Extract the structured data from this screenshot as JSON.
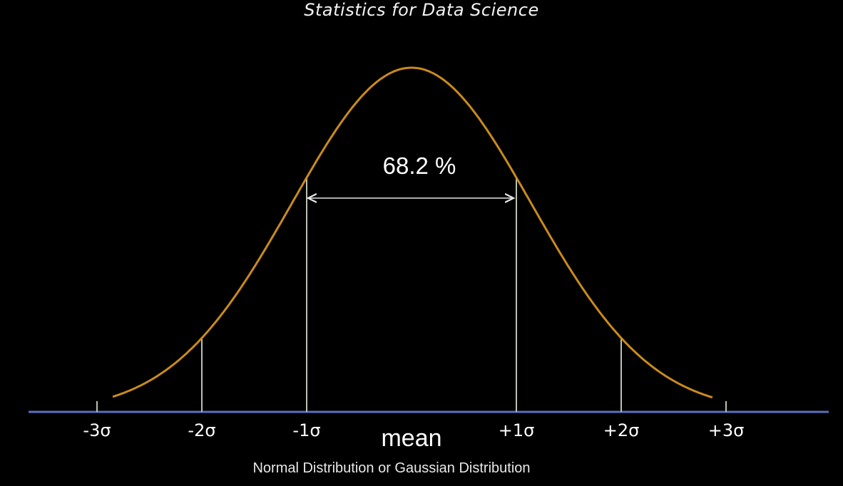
{
  "header": {
    "title": "Statistics for Data Science"
  },
  "diagram": {
    "percent_label": "68.2 %",
    "caption": "Normal Distribution or Gaussian Distribution",
    "ticks": [
      {
        "label": "-3σ",
        "sigma": -3
      },
      {
        "label": "-2σ",
        "sigma": -2
      },
      {
        "label": "-1σ",
        "sigma": -1
      },
      {
        "label": "mean",
        "sigma": 0
      },
      {
        "label": "+1σ",
        "sigma": 1
      },
      {
        "label": "+2σ",
        "sigma": 2
      },
      {
        "label": "+3σ",
        "sigma": 3
      }
    ],
    "colors": {
      "curve": "#c98a1e",
      "baseline": "#5b6fbf",
      "guide_lines": "#b9c2b0",
      "arrow": "#e6e6e6",
      "background": "#000000"
    }
  }
}
